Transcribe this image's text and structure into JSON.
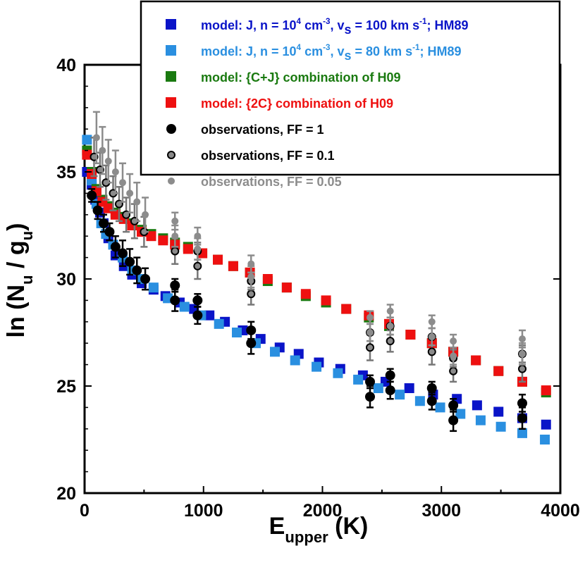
{
  "chart_data": {
    "type": "scatter",
    "xlabel": {
      "main": "E",
      "sub": "upper",
      "rest": " (K)"
    },
    "ylabel": {
      "pre": "ln (N",
      "sub1": "u",
      "mid": " / g",
      "sub2": "u",
      "post": ")"
    },
    "xlim": [
      0,
      4000
    ],
    "ylim": [
      20,
      40
    ],
    "xticks": [
      0,
      1000,
      2000,
      3000,
      4000
    ],
    "yticks": [
      20,
      25,
      30,
      35,
      40
    ],
    "grid": false,
    "legend_position": "top-right",
    "series": [
      {
        "name": "model: J, n = 10^4 cm^-3, v_s = 100 km s^-1; HM89",
        "legend_parts": [
          [
            "model: J, n = 10",
            ""
          ],
          [
            "4",
            "sup"
          ],
          [
            " cm",
            ""
          ],
          [
            "-3",
            "sup"
          ],
          [
            ", v",
            ""
          ],
          [
            "s",
            "sub"
          ],
          [
            " = 100 km s",
            ""
          ],
          [
            "-1",
            "sup"
          ],
          [
            "; HM89",
            ""
          ]
        ],
        "color": "#0a14c8",
        "marker": "square",
        "points": [
          [
            20,
            35.0
          ],
          [
            60,
            34.4
          ],
          [
            90,
            33.7
          ],
          [
            130,
            33.1
          ],
          [
            160,
            32.6
          ],
          [
            200,
            31.9
          ],
          [
            260,
            31.1
          ],
          [
            330,
            30.6
          ],
          [
            400,
            30.2
          ],
          [
            480,
            29.8
          ],
          [
            580,
            29.5
          ],
          [
            680,
            29.2
          ],
          [
            800,
            28.9
          ],
          [
            920,
            28.6
          ],
          [
            1050,
            28.3
          ],
          [
            1180,
            28.0
          ],
          [
            1330,
            27.6
          ],
          [
            1480,
            27.2
          ],
          [
            1640,
            26.8
          ],
          [
            1800,
            26.5
          ],
          [
            1970,
            26.1
          ],
          [
            2150,
            25.8
          ],
          [
            2340,
            25.5
          ],
          [
            2530,
            25.2
          ],
          [
            2730,
            24.9
          ],
          [
            2930,
            24.6
          ],
          [
            3130,
            24.4
          ],
          [
            3300,
            24.1
          ],
          [
            3480,
            23.8
          ],
          [
            3680,
            23.5
          ],
          [
            3880,
            23.2
          ]
        ]
      },
      {
        "name": "model: J, n = 10^4 cm^-3, v_s = 80 km s^-1; HM89",
        "legend_parts": [
          [
            "model: J, n = 10",
            ""
          ],
          [
            "4",
            "sup"
          ],
          [
            " cm",
            ""
          ],
          [
            "-3",
            "sup"
          ],
          [
            ", v",
            ""
          ],
          [
            "s",
            "sub"
          ],
          [
            " = 80 km s",
            ""
          ],
          [
            "-1",
            "sup"
          ],
          [
            "; HM89",
            ""
          ]
        ],
        "color": "#2a8fe0",
        "marker": "square",
        "points": [
          [
            20,
            36.5
          ],
          [
            60,
            34.6
          ],
          [
            100,
            33.5
          ],
          [
            140,
            32.6
          ],
          [
            180,
            32.1
          ],
          [
            240,
            31.6
          ],
          [
            320,
            31.0
          ],
          [
            400,
            30.4
          ],
          [
            480,
            30.0
          ],
          [
            580,
            29.6
          ],
          [
            700,
            29.1
          ],
          [
            840,
            28.7
          ],
          [
            980,
            28.3
          ],
          [
            1130,
            27.9
          ],
          [
            1280,
            27.5
          ],
          [
            1440,
            27.0
          ],
          [
            1600,
            26.6
          ],
          [
            1770,
            26.2
          ],
          [
            1950,
            25.9
          ],
          [
            2130,
            25.6
          ],
          [
            2300,
            25.3
          ],
          [
            2470,
            24.9
          ],
          [
            2650,
            24.6
          ],
          [
            2820,
            24.3
          ],
          [
            2990,
            24.0
          ],
          [
            3160,
            23.7
          ],
          [
            3330,
            23.4
          ],
          [
            3500,
            23.1
          ],
          [
            3680,
            22.8
          ],
          [
            3870,
            22.5
          ]
        ]
      },
      {
        "name": "model: {C+J} combination of H09",
        "legend_parts": [
          [
            "model: {C+J} combination of H09",
            ""
          ]
        ],
        "color": "#1a7a10",
        "marker": "square",
        "points": [
          [
            20,
            36.0
          ],
          [
            60,
            35.0
          ],
          [
            100,
            34.2
          ],
          [
            150,
            33.7
          ],
          [
            200,
            33.4
          ],
          [
            260,
            33.1
          ],
          [
            330,
            32.9
          ],
          [
            400,
            32.6
          ],
          [
            480,
            32.3
          ],
          [
            560,
            32.1
          ],
          [
            660,
            31.9
          ],
          [
            760,
            31.7
          ],
          [
            870,
            31.5
          ],
          [
            990,
            31.2
          ],
          [
            1120,
            30.9
          ],
          [
            1250,
            30.6
          ],
          [
            1390,
            30.3
          ],
          [
            1540,
            29.9
          ],
          [
            1700,
            29.6
          ],
          [
            1860,
            29.2
          ],
          [
            2030,
            28.9
          ],
          [
            2200,
            28.6
          ],
          [
            2390,
            28.2
          ],
          [
            2560,
            27.8
          ],
          [
            2740,
            27.4
          ],
          [
            2920,
            27.0
          ],
          [
            3100,
            26.6
          ],
          [
            3290,
            26.2
          ],
          [
            3480,
            25.7
          ],
          [
            3680,
            25.2
          ],
          [
            3880,
            24.7
          ]
        ]
      },
      {
        "name": "model: {2C} combination of H09",
        "legend_parts": [
          [
            "model: {2C} combination of H09",
            ""
          ]
        ],
        "color": "#ee1010",
        "marker": "square",
        "points": [
          [
            20,
            35.8
          ],
          [
            60,
            34.9
          ],
          [
            100,
            34.1
          ],
          [
            150,
            33.6
          ],
          [
            200,
            33.3
          ],
          [
            260,
            33.0
          ],
          [
            330,
            32.8
          ],
          [
            400,
            32.5
          ],
          [
            480,
            32.2
          ],
          [
            560,
            32.0
          ],
          [
            660,
            31.8
          ],
          [
            760,
            31.6
          ],
          [
            870,
            31.4
          ],
          [
            990,
            31.2
          ],
          [
            1120,
            30.9
          ],
          [
            1250,
            30.6
          ],
          [
            1390,
            30.3
          ],
          [
            1540,
            30.0
          ],
          [
            1700,
            29.6
          ],
          [
            1860,
            29.3
          ],
          [
            2030,
            29.0
          ],
          [
            2200,
            28.6
          ],
          [
            2390,
            28.3
          ],
          [
            2560,
            27.9
          ],
          [
            2740,
            27.4
          ],
          [
            2920,
            27.0
          ],
          [
            3100,
            26.6
          ],
          [
            3290,
            26.2
          ],
          [
            3480,
            25.7
          ],
          [
            3680,
            25.2
          ],
          [
            3880,
            24.8
          ]
        ]
      },
      {
        "name": "observations, FF = 1",
        "legend_parts": [
          [
            "observations, FF = 1",
            ""
          ]
        ],
        "color": "#000000",
        "marker": "circle-filled",
        "r": 7,
        "points": [
          [
            60,
            33.9,
            0.3
          ],
          [
            110,
            33.2,
            0.4
          ],
          [
            160,
            32.6,
            0.4
          ],
          [
            210,
            32.2,
            0.4
          ],
          [
            260,
            31.5,
            0.5
          ],
          [
            320,
            31.2,
            0.6
          ],
          [
            380,
            30.8,
            0.6
          ],
          [
            440,
            30.4,
            0.6
          ],
          [
            510,
            30.0,
            0.5
          ],
          [
            760,
            29.0,
            0.5
          ],
          [
            760,
            29.7,
            0.3
          ],
          [
            950,
            28.3,
            0.4
          ],
          [
            950,
            29.0,
            0.3
          ],
          [
            1400,
            27.0,
            0.5
          ],
          [
            1400,
            27.6,
            0.4
          ],
          [
            2400,
            24.5,
            0.5
          ],
          [
            2400,
            25.2,
            0.3
          ],
          [
            2570,
            24.8,
            0.4
          ],
          [
            2570,
            25.5,
            0.3
          ],
          [
            2920,
            24.3,
            0.4
          ],
          [
            2920,
            24.9,
            0.3
          ],
          [
            3100,
            23.4,
            0.5
          ],
          [
            3100,
            24.1,
            0.3
          ],
          [
            3680,
            23.5,
            0.5
          ],
          [
            3680,
            24.2,
            0.4
          ]
        ]
      },
      {
        "name": "observations, FF = 0.1",
        "legend_parts": [
          [
            "observations, FF = 0.1",
            ""
          ]
        ],
        "color": "#000000",
        "fill": "#8a8a8a",
        "marker": "circle-open",
        "r": 5,
        "points": [
          [
            80,
            35.7,
            0.9
          ],
          [
            130,
            35.1,
            0.8
          ],
          [
            180,
            34.5,
            0.8
          ],
          [
            240,
            34.0,
            0.8
          ],
          [
            290,
            33.5,
            0.8
          ],
          [
            350,
            33.0,
            0.8
          ],
          [
            420,
            32.7,
            0.8
          ],
          [
            500,
            32.2,
            0.7
          ],
          [
            760,
            31.3,
            0.6
          ],
          [
            950,
            30.6,
            0.6
          ],
          [
            950,
            31.3,
            0.4
          ],
          [
            1400,
            29.3,
            0.5
          ],
          [
            1400,
            29.9,
            0.4
          ],
          [
            2400,
            26.8,
            0.6
          ],
          [
            2400,
            27.5,
            0.4
          ],
          [
            2570,
            27.1,
            0.5
          ],
          [
            2570,
            27.8,
            0.4
          ],
          [
            2920,
            26.6,
            0.6
          ],
          [
            2920,
            27.3,
            0.4
          ],
          [
            3100,
            25.7,
            0.5
          ],
          [
            3100,
            26.3,
            0.4
          ],
          [
            3680,
            25.8,
            0.6
          ],
          [
            3680,
            26.5,
            0.4
          ]
        ]
      },
      {
        "name": "observations, FF = 0.05",
        "legend_parts": [
          [
            "observations, FF = 0.05",
            ""
          ]
        ],
        "color": "#8c8c8c",
        "marker": "circle-filled",
        "r": 5,
        "points": [
          [
            100,
            36.6,
            1.2
          ],
          [
            150,
            36.0,
            1.1
          ],
          [
            200,
            35.5,
            1.0
          ],
          [
            260,
            35.0,
            1.0
          ],
          [
            320,
            34.5,
            0.9
          ],
          [
            380,
            34.0,
            0.9
          ],
          [
            440,
            33.6,
            0.9
          ],
          [
            510,
            33.0,
            0.8
          ],
          [
            760,
            32.7,
            0.4
          ],
          [
            760,
            32.0,
            0.5
          ],
          [
            950,
            32.0,
            0.4
          ],
          [
            950,
            31.4,
            0.5
          ],
          [
            1400,
            30.7,
            0.4
          ],
          [
            1400,
            30.1,
            0.5
          ],
          [
            2400,
            28.2,
            0.3
          ],
          [
            2400,
            27.5,
            0.4
          ],
          [
            2570,
            28.5,
            0.3
          ],
          [
            2570,
            27.8,
            0.4
          ],
          [
            2920,
            28.0,
            0.3
          ],
          [
            2920,
            27.3,
            0.4
          ],
          [
            3100,
            27.1,
            0.3
          ],
          [
            3100,
            26.4,
            0.4
          ],
          [
            3680,
            27.2,
            0.4
          ],
          [
            3680,
            26.5,
            0.5
          ]
        ]
      }
    ]
  }
}
